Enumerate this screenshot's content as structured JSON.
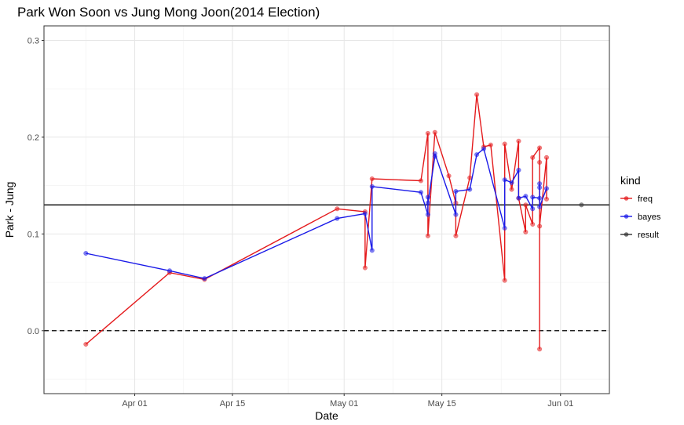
{
  "chart_data": {
    "type": "line",
    "title": "Park Won Soon vs Jung Mong Joon(2014 Election)",
    "xlabel": "Date",
    "ylabel": "Park - Jung",
    "xlim": [
      "2014-03-19",
      "2014-06-08"
    ],
    "ylim": [
      -0.065,
      0.315
    ],
    "x_ticks": [
      {
        "date": "2014-04-01",
        "label": "Apr 01"
      },
      {
        "date": "2014-04-15",
        "label": "Apr 15"
      },
      {
        "date": "2014-05-01",
        "label": "May 01"
      },
      {
        "date": "2014-05-15",
        "label": "May 15"
      },
      {
        "date": "2014-06-01",
        "label": "Jun 01"
      }
    ],
    "y_ticks": [
      {
        "value": 0.0,
        "label": "0.0"
      },
      {
        "value": 0.1,
        "label": "0.1"
      },
      {
        "value": 0.2,
        "label": "0.2"
      },
      {
        "value": 0.3,
        "label": "0.3"
      }
    ],
    "grid": true,
    "legend": {
      "title": "kind",
      "position": "right"
    },
    "reference_lines": [
      {
        "value": 0.0,
        "style": "dashed",
        "color": "#000000"
      },
      {
        "value": 0.13,
        "style": "solid",
        "color": "#000000"
      }
    ],
    "series": [
      {
        "name": "freq",
        "color": "#e41a1c",
        "points": [
          {
            "x": "2014-03-25",
            "y": -0.014
          },
          {
            "x": "2014-04-06",
            "y": 0.06
          },
          {
            "x": "2014-04-11",
            "y": 0.053
          },
          {
            "x": "2014-04-30",
            "y": 0.126
          },
          {
            "x": "2014-05-04",
            "y": 0.123
          },
          {
            "x": "2014-05-04",
            "y": 0.065
          },
          {
            "x": "2014-05-05",
            "y": 0.157
          },
          {
            "x": "2014-05-12",
            "y": 0.155
          },
          {
            "x": "2014-05-13",
            "y": 0.204
          },
          {
            "x": "2014-05-13",
            "y": 0.098
          },
          {
            "x": "2014-05-14",
            "y": 0.205
          },
          {
            "x": "2014-05-16",
            "y": 0.16
          },
          {
            "x": "2014-05-17",
            "y": 0.132
          },
          {
            "x": "2014-05-17",
            "y": 0.098
          },
          {
            "x": "2014-05-19",
            "y": 0.158
          },
          {
            "x": "2014-05-20",
            "y": 0.244
          },
          {
            "x": "2014-05-21",
            "y": 0.19
          },
          {
            "x": "2014-05-22",
            "y": 0.192
          },
          {
            "x": "2014-05-24",
            "y": 0.052
          },
          {
            "x": "2014-05-24",
            "y": 0.193
          },
          {
            "x": "2014-05-25",
            "y": 0.146
          },
          {
            "x": "2014-05-26",
            "y": 0.196
          },
          {
            "x": "2014-05-26",
            "y": 0.137
          },
          {
            "x": "2014-05-27",
            "y": 0.102
          },
          {
            "x": "2014-05-27",
            "y": 0.13
          },
          {
            "x": "2014-05-28",
            "y": 0.11
          },
          {
            "x": "2014-05-28",
            "y": 0.179
          },
          {
            "x": "2014-05-29",
            "y": 0.189
          },
          {
            "x": "2014-05-29",
            "y": 0.174
          },
          {
            "x": "2014-05-29",
            "y": -0.019
          },
          {
            "x": "2014-05-29",
            "y": 0.108
          },
          {
            "x": "2014-05-30",
            "y": 0.179
          },
          {
            "x": "2014-05-30",
            "y": 0.136
          }
        ]
      },
      {
        "name": "bayes",
        "color": "#1a1ae8",
        "points": [
          {
            "x": "2014-03-25",
            "y": 0.08
          },
          {
            "x": "2014-04-06",
            "y": 0.062
          },
          {
            "x": "2014-04-11",
            "y": 0.054
          },
          {
            "x": "2014-04-30",
            "y": 0.116
          },
          {
            "x": "2014-05-04",
            "y": 0.121
          },
          {
            "x": "2014-05-05",
            "y": 0.083
          },
          {
            "x": "2014-05-05",
            "y": 0.149
          },
          {
            "x": "2014-05-12",
            "y": 0.143
          },
          {
            "x": "2014-05-13",
            "y": 0.12
          },
          {
            "x": "2014-05-13",
            "y": 0.138
          },
          {
            "x": "2014-05-13",
            "y": 0.132
          },
          {
            "x": "2014-05-14",
            "y": 0.18
          },
          {
            "x": "2014-05-14",
            "y": 0.183
          },
          {
            "x": "2014-05-17",
            "y": 0.12
          },
          {
            "x": "2014-05-17",
            "y": 0.144
          },
          {
            "x": "2014-05-19",
            "y": 0.146
          },
          {
            "x": "2014-05-20",
            "y": 0.182
          },
          {
            "x": "2014-05-21",
            "y": 0.188
          },
          {
            "x": "2014-05-24",
            "y": 0.106
          },
          {
            "x": "2014-05-24",
            "y": 0.156
          },
          {
            "x": "2014-05-25",
            "y": 0.153
          },
          {
            "x": "2014-05-26",
            "y": 0.166
          },
          {
            "x": "2014-05-26",
            "y": 0.137
          },
          {
            "x": "2014-05-27",
            "y": 0.139
          },
          {
            "x": "2014-05-28",
            "y": 0.126
          },
          {
            "x": "2014-05-28",
            "y": 0.138
          },
          {
            "x": "2014-05-29",
            "y": 0.137
          },
          {
            "x": "2014-05-29",
            "y": 0.152
          },
          {
            "x": "2014-05-29",
            "y": 0.148
          },
          {
            "x": "2014-05-29",
            "y": 0.128
          },
          {
            "x": "2014-05-30",
            "y": 0.147
          }
        ]
      },
      {
        "name": "result",
        "color": "#333333",
        "points": [
          {
            "x": "2014-06-04",
            "y": 0.13
          }
        ]
      }
    ]
  }
}
